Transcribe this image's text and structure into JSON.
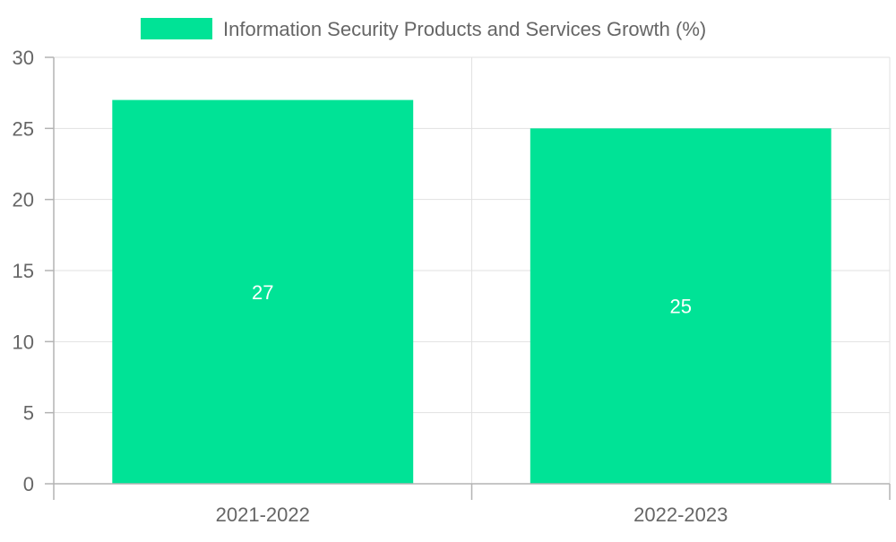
{
  "chart_data": {
    "type": "bar",
    "categories": [
      "2021-2022",
      "2022-2023"
    ],
    "series": [
      {
        "name": "Information Security Products and Services Growth (%)",
        "values": [
          27,
          25
        ],
        "color": "#00e396"
      }
    ],
    "title": "",
    "xlabel": "",
    "ylabel": "",
    "ylim": [
      0,
      30
    ],
    "yticks": [
      0,
      5,
      10,
      15,
      20,
      25,
      30
    ],
    "grid": true,
    "legend": "top-center",
    "data_labels": [
      "27",
      "25"
    ]
  },
  "colors": {
    "bar": "#00e396",
    "grid": "#e1e1e1",
    "axis": "#b3b3b3",
    "text": "#666666",
    "data_label": "#ffffff"
  }
}
